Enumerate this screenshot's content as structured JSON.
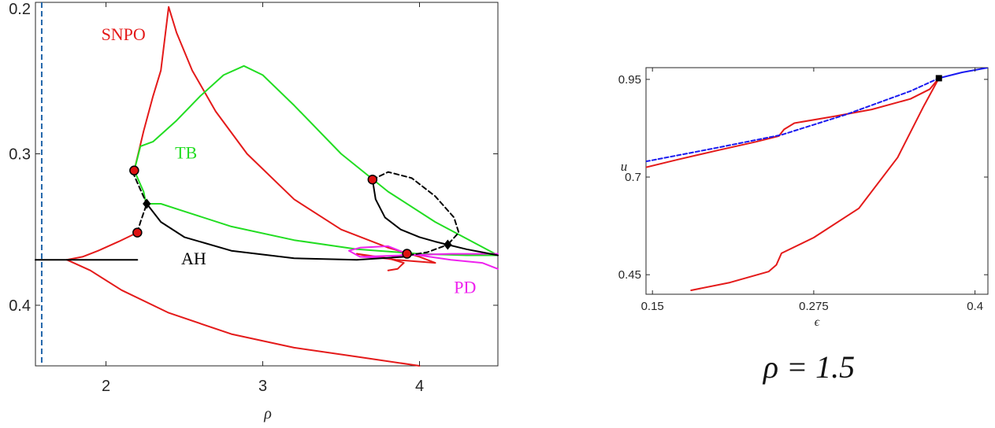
{
  "chart_data": [
    {
      "type": "line",
      "xlabel": "ρ",
      "xlim": [
        1.55,
        4.5
      ],
      "ylim": [
        0.2,
        0.44
      ],
      "y_reversed": true,
      "xticks": [
        "2",
        "3",
        "4"
      ],
      "xtick_values": [
        2,
        3,
        4
      ],
      "yticks": [
        "0.2",
        "0.3",
        "0.4"
      ],
      "ytick_values": [
        0.2,
        0.3,
        0.4
      ],
      "grid": false,
      "colors": {
        "SNPO": "#e41a1a",
        "TB": "#22dd22",
        "AH": "#000000",
        "PD": "#ee22ee",
        "marker": "#dd1111",
        "refline": "#2266aa"
      },
      "labels": [
        {
          "text": "SNPO",
          "name": "snpo-label",
          "x": 1.97,
          "y": 0.225,
          "color": "#e41a1a"
        },
        {
          "text": "TB",
          "name": "tb-label",
          "x": 2.44,
          "y": 0.303,
          "color": "#22dd22"
        },
        {
          "text": "AH",
          "name": "ah-label",
          "x": 2.48,
          "y": 0.373,
          "color": "#000000"
        },
        {
          "text": "PD",
          "name": "pd-label",
          "x": 4.22,
          "y": 0.392,
          "color": "#ee22ee"
        }
      ],
      "reference_line": {
        "x": 1.59,
        "style": "dashed"
      },
      "series": [
        {
          "group": "SNPO",
          "name": "snpo-1",
          "dashed": false,
          "x": [
            1.75,
            1.85,
            1.95,
            2.08,
            2.2
          ],
          "y": [
            0.37,
            0.368,
            0.364,
            0.358,
            0.352
          ]
        },
        {
          "group": "SNPO",
          "name": "snpo-2",
          "dashed": false,
          "x": [
            1.75,
            1.9,
            2.1,
            2.4,
            2.8,
            3.2,
            3.6,
            4.0
          ],
          "y": [
            0.37,
            0.377,
            0.39,
            0.405,
            0.419,
            0.428,
            0.434,
            0.44
          ]
        },
        {
          "group": "SNPO",
          "name": "snpo-3",
          "dashed": false,
          "x": [
            2.18,
            2.24,
            2.3,
            2.35,
            2.4,
            2.45,
            2.55,
            2.7,
            2.9,
            3.2,
            3.5,
            3.8,
            4.0,
            4.1
          ],
          "y": [
            0.311,
            0.285,
            0.262,
            0.245,
            0.203,
            0.22,
            0.245,
            0.272,
            0.3,
            0.33,
            0.35,
            0.362,
            0.368,
            0.372
          ]
        },
        {
          "group": "SNPO",
          "name": "snpo-4",
          "dashed": false,
          "x": [
            4.1,
            3.98,
            3.85,
            3.7,
            3.6
          ],
          "y": [
            0.372,
            0.371,
            0.37,
            0.368,
            0.366
          ]
        },
        {
          "group": "SNPO",
          "name": "snpo-5",
          "dashed": false,
          "x": [
            3.6,
            3.8,
            3.9,
            3.88,
            3.86,
            3.8
          ],
          "y": [
            0.366,
            0.369,
            0.372,
            0.374,
            0.376,
            0.377
          ]
        },
        {
          "group": "TB",
          "name": "tb-1",
          "dashed": false,
          "x": [
            2.18,
            2.22,
            2.3,
            2.45,
            2.6,
            2.75,
            2.88,
            3.0,
            3.2,
            3.5,
            3.8,
            4.1,
            4.5
          ],
          "y": [
            0.311,
            0.295,
            0.292,
            0.278,
            0.262,
            0.248,
            0.242,
            0.248,
            0.268,
            0.3,
            0.325,
            0.345,
            0.367
          ]
        },
        {
          "group": "TB",
          "name": "tb-2",
          "dashed": false,
          "x": [
            2.18,
            2.21,
            2.24,
            2.25,
            2.26
          ],
          "y": [
            0.311,
            0.318,
            0.325,
            0.33,
            0.333
          ]
        },
        {
          "group": "TB",
          "name": "tb-3",
          "dashed": false,
          "x": [
            2.26,
            2.35,
            2.5,
            2.8,
            3.2,
            3.6,
            4.0,
            4.3,
            4.5
          ],
          "y": [
            0.333,
            0.333,
            0.338,
            0.348,
            0.357,
            0.363,
            0.366,
            0.367,
            0.367
          ]
        },
        {
          "group": "AH",
          "name": "ah-1",
          "dashed": false,
          "x": [
            1.55,
            1.75,
            2.0,
            2.2
          ],
          "y": [
            0.37,
            0.37,
            0.37,
            0.37
          ]
        },
        {
          "group": "AH",
          "name": "ah-2",
          "dashed": true,
          "x": [
            2.2,
            2.22,
            2.24,
            2.26
          ],
          "y": [
            0.352,
            0.345,
            0.339,
            0.333
          ]
        },
        {
          "group": "AH",
          "name": "ah-3",
          "dashed": true,
          "x": [
            2.17,
            2.2,
            2.23,
            2.26
          ],
          "y": [
            0.312,
            0.319,
            0.326,
            0.333
          ]
        },
        {
          "group": "AH",
          "name": "ah-4",
          "dashed": false,
          "x": [
            2.26,
            2.35,
            2.5,
            2.8,
            3.2,
            3.6,
            3.9,
            3.93
          ],
          "y": [
            0.333,
            0.345,
            0.355,
            0.364,
            0.369,
            0.37,
            0.368,
            0.367
          ]
        },
        {
          "group": "AH",
          "name": "ah-5",
          "dashed": false,
          "x": [
            3.7,
            3.72,
            3.78,
            3.88,
            4.0,
            4.1,
            4.18
          ],
          "y": [
            0.317,
            0.33,
            0.342,
            0.35,
            0.355,
            0.358,
            0.36
          ]
        },
        {
          "group": "AH",
          "name": "ah-6",
          "dashed": true,
          "x": [
            3.7,
            3.8,
            3.95,
            4.1,
            4.22,
            4.25,
            4.18
          ],
          "y": [
            0.317,
            0.312,
            0.316,
            0.328,
            0.342,
            0.352,
            0.36
          ]
        },
        {
          "group": "AH",
          "name": "ah-7",
          "dashed": false,
          "x": [
            4.18,
            4.3,
            4.4,
            4.5
          ],
          "y": [
            0.36,
            0.363,
            0.365,
            0.367
          ]
        },
        {
          "group": "AH",
          "name": "ah-8",
          "dashed": true,
          "x": [
            3.93,
            4.05,
            4.18
          ],
          "y": [
            0.367,
            0.365,
            0.36
          ]
        },
        {
          "group": "PD",
          "name": "pd-1",
          "dashed": false,
          "x": [
            3.92,
            4.0,
            4.2,
            4.4,
            4.5
          ],
          "y": [
            0.366,
            0.367,
            0.37,
            0.372,
            0.376
          ]
        },
        {
          "group": "PD",
          "name": "pd-2",
          "dashed": false,
          "x": [
            3.92,
            3.8,
            3.62,
            3.55,
            3.62,
            3.8,
            3.92
          ],
          "y": [
            0.366,
            0.361,
            0.362,
            0.364,
            0.368,
            0.369,
            0.366
          ]
        },
        {
          "group": "PD",
          "name": "pd-3",
          "dashed": false,
          "x": [
            3.62,
            3.9,
            4.2,
            4.5
          ],
          "y": [
            0.368,
            0.367,
            0.366,
            0.366
          ]
        }
      ],
      "markers": [
        {
          "type": "circle",
          "name": "marker-circle",
          "x": 2.18,
          "y": 0.311
        },
        {
          "type": "circle",
          "name": "marker-circle",
          "x": 2.2,
          "y": 0.352
        },
        {
          "type": "circle",
          "name": "marker-circle",
          "x": 3.7,
          "y": 0.317
        },
        {
          "type": "circle",
          "name": "marker-circle",
          "x": 3.92,
          "y": 0.366
        },
        {
          "type": "diamond",
          "name": "marker-diamond",
          "x": 2.26,
          "y": 0.333
        },
        {
          "type": "diamond",
          "name": "marker-diamond",
          "x": 4.18,
          "y": 0.36
        }
      ]
    },
    {
      "type": "line",
      "xlabel": "ϵ",
      "ylabel": "u",
      "xlim": [
        0.145,
        0.41
      ],
      "ylim": [
        0.4,
        0.98
      ],
      "xticks": [
        "0.15",
        "0.275",
        "0.4"
      ],
      "xtick_values": [
        0.15,
        0.275,
        0.4
      ],
      "yticks": [
        "0.45",
        "0.7",
        "0.95"
      ],
      "ytick_values": [
        0.45,
        0.7,
        0.95
      ],
      "grid": false,
      "colors": {
        "red": "#e41a1a",
        "blue": "#1a1af0"
      },
      "series": [
        {
          "name": "red-upper",
          "color": "#e41a1a",
          "dashed": false,
          "x": [
            0.145,
            0.17,
            0.2,
            0.23,
            0.248,
            0.252,
            0.26,
            0.29,
            0.32,
            0.35,
            0.365,
            0.372
          ],
          "y": [
            0.725,
            0.745,
            0.768,
            0.79,
            0.805,
            0.822,
            0.838,
            0.855,
            0.873,
            0.9,
            0.925,
            0.953
          ]
        },
        {
          "name": "red-lower",
          "color": "#e41a1a",
          "dashed": false,
          "x": [
            0.18,
            0.21,
            0.24,
            0.246,
            0.25,
            0.275,
            0.31,
            0.34,
            0.36,
            0.372
          ],
          "y": [
            0.41,
            0.43,
            0.458,
            0.475,
            0.505,
            0.545,
            0.62,
            0.75,
            0.88,
            0.953
          ]
        },
        {
          "name": "blue-dashed",
          "color": "#1a1af0",
          "dashed": true,
          "x": [
            0.145,
            0.2,
            0.25,
            0.3,
            0.35,
            0.372
          ],
          "y": [
            0.74,
            0.775,
            0.808,
            0.86,
            0.92,
            0.953
          ]
        },
        {
          "name": "blue-solid",
          "color": "#1a1af0",
          "dashed": false,
          "x": [
            0.372,
            0.39,
            0.41
          ],
          "y": [
            0.953,
            0.968,
            0.98
          ]
        }
      ],
      "markers": [
        {
          "type": "square",
          "name": "marker-square",
          "x": 0.372,
          "y": 0.953
        }
      ]
    }
  ],
  "caption": "ρ = 1.5"
}
